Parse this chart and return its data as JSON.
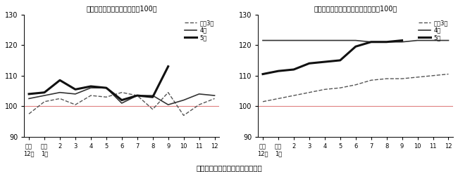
{
  "left_title": "農産物価格指数（令和２年＝100）",
  "right_title": "農業生産資材価格指数（令和２年＝100）",
  "bottom_label": "表　令和５年９月　農業物価指数",
  "x_tick_labels": [
    "前年\n12月",
    "当年\n1月",
    "2",
    "3",
    "4",
    "5",
    "6",
    "7",
    "8",
    "9",
    "10",
    "11",
    "12"
  ],
  "ylim": [
    90,
    130
  ],
  "yticks": [
    90,
    100,
    110,
    120,
    130
  ],
  "ref_line": 100,
  "left_y3": [
    97.5,
    101.5,
    102.5,
    100.5,
    103.5,
    103.0,
    104.5,
    103.5,
    99.0,
    104.5,
    97.0,
    100.5,
    102.5
  ],
  "left_y4": [
    102.5,
    103.5,
    104.5,
    104.0,
    106.0,
    106.0,
    101.0,
    103.5,
    103.5,
    100.5,
    102.0,
    104.0,
    103.5
  ],
  "left_y5": [
    104.0,
    104.5,
    108.5,
    105.5,
    106.5,
    106.0,
    102.0,
    103.5,
    103.0,
    113.0,
    null,
    null,
    null
  ],
  "right_y3": [
    101.5,
    102.5,
    103.5,
    104.5,
    105.5,
    106.0,
    107.0,
    108.5,
    109.0,
    109.0,
    109.5,
    110.0,
    110.5
  ],
  "right_y4": [
    121.5,
    121.5,
    121.5,
    121.5,
    121.5,
    121.5,
    121.5,
    121.0,
    121.0,
    121.0,
    121.5,
    121.5,
    121.5
  ],
  "right_y5": [
    110.5,
    111.5,
    112.0,
    114.0,
    114.5,
    115.0,
    119.5,
    121.0,
    121.0,
    121.5,
    null,
    null,
    null
  ],
  "legend_labels": [
    "令和3年",
    "4年",
    "5年"
  ],
  "line3_style": {
    "linestyle": "dashed",
    "linewidth": 1.0,
    "color": "#555555"
  },
  "line4_style": {
    "linestyle": "solid",
    "linewidth": 1.2,
    "color": "#333333"
  },
  "line5_style": {
    "linestyle": "solid",
    "linewidth": 2.2,
    "color": "#111111"
  },
  "ref_color": "#e08080"
}
